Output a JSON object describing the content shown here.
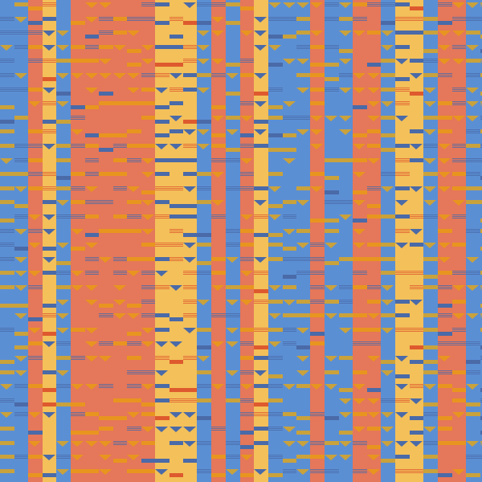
{
  "pattern": {
    "name": "woven-stripe-pattern",
    "palette": {
      "blue": "#5b8fd4",
      "orange": "#e5775a",
      "yellow": "#f3c05a",
      "dark_blue": "#4a6aa8",
      "gold": "#c9a23c",
      "amber": "#e8951f",
      "red_orange": "#de5a2e"
    }
  }
}
